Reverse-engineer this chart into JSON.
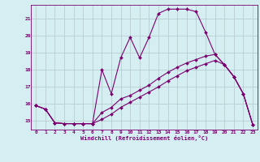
{
  "xlabel": "Windchill (Refroidissement éolien,°C)",
  "x_values": [
    0,
    1,
    2,
    3,
    4,
    5,
    6,
    7,
    8,
    9,
    10,
    11,
    12,
    13,
    14,
    15,
    16,
    17,
    18,
    19,
    20,
    21,
    22,
    23
  ],
  "line1_y": [
    15.9,
    15.7,
    14.9,
    14.85,
    14.85,
    14.85,
    14.85,
    15.1,
    15.4,
    15.8,
    16.1,
    16.4,
    16.7,
    17.0,
    17.35,
    17.65,
    17.95,
    18.15,
    18.35,
    18.55,
    18.3,
    17.6,
    16.6,
    14.8
  ],
  "line2_y": [
    15.9,
    15.7,
    14.9,
    14.85,
    14.85,
    14.85,
    14.85,
    15.5,
    15.8,
    16.3,
    16.5,
    16.8,
    17.1,
    17.5,
    17.85,
    18.15,
    18.4,
    18.6,
    18.8,
    18.9,
    18.3,
    17.6,
    16.6,
    14.8
  ],
  "line3_y": [
    15.9,
    15.7,
    14.9,
    14.85,
    14.85,
    14.85,
    14.85,
    18.0,
    16.6,
    18.7,
    19.9,
    18.7,
    19.9,
    21.3,
    21.55,
    21.55,
    21.55,
    21.4,
    20.2,
    18.9,
    18.3,
    17.6,
    16.6,
    14.8
  ],
  "line_color": "#7b0070",
  "bg_color": "#d5eef2",
  "grid_color": "#b8cdd0",
  "ylim": [
    14.5,
    21.8
  ],
  "xlim": [
    -0.5,
    23.5
  ],
  "yticks": [
    15,
    16,
    17,
    18,
    19,
    20,
    21
  ],
  "xticks": [
    0,
    1,
    2,
    3,
    4,
    5,
    6,
    7,
    8,
    9,
    10,
    11,
    12,
    13,
    14,
    15,
    16,
    17,
    18,
    19,
    20,
    21,
    22,
    23
  ]
}
